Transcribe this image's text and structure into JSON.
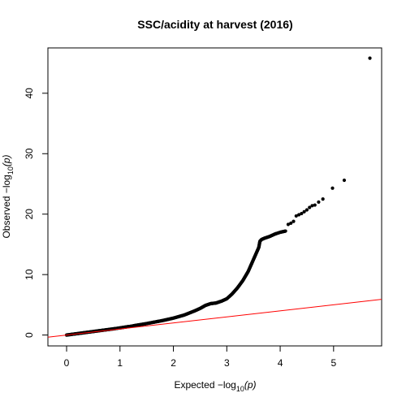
{
  "chart_data": {
    "type": "scatter",
    "title": "SSC/acidity at harvest (2016)",
    "xlabel": {
      "prefix": "Expected  −log",
      "sub": "10",
      "suffix": "(p)"
    },
    "ylabel": {
      "prefix": "Observed  −log",
      "sub": "10",
      "suffix": "(p)"
    },
    "xlim": [
      -0.35,
      5.9
    ],
    "ylim": [
      -1.8,
      47.5
    ],
    "x_ticks": [
      0,
      1,
      2,
      3,
      4,
      5
    ],
    "y_ticks": [
      0,
      10,
      20,
      30,
      40
    ],
    "grid": false,
    "legend": "none",
    "reference_line": {
      "description": "y = x",
      "color": "#ff0000",
      "x": [
        -0.35,
        5.9
      ],
      "y": [
        -0.35,
        5.9
      ]
    },
    "point_color": "#000000",
    "curve_points": {
      "x": [
        0,
        0.3,
        0.6,
        0.9,
        1.2,
        1.5,
        1.8,
        2.0,
        2.2,
        2.4,
        2.5,
        2.6,
        2.7,
        2.75,
        2.8,
        2.9,
        3.0,
        3.1,
        3.2,
        3.3,
        3.4,
        3.5,
        3.55,
        3.6,
        3.62,
        3.65,
        3.7,
        3.8,
        3.9,
        4.0,
        4.1
      ],
      "y": [
        0,
        0.35,
        0.7,
        1.05,
        1.45,
        1.9,
        2.4,
        2.8,
        3.3,
        4.0,
        4.4,
        4.9,
        5.2,
        5.25,
        5.3,
        5.6,
        6.0,
        6.8,
        7.8,
        9.0,
        10.5,
        12.5,
        13.5,
        14.5,
        15.5,
        15.8,
        16.0,
        16.3,
        16.7,
        17.0,
        17.2
      ]
    },
    "outlier_points": {
      "x": [
        4.15,
        4.2,
        4.25,
        4.3,
        4.35,
        4.4,
        4.45,
        4.5,
        4.55,
        4.6,
        4.65,
        4.72,
        4.8,
        4.98,
        5.2,
        5.68
      ],
      "y": [
        18.3,
        18.5,
        18.8,
        19.7,
        19.9,
        20.1,
        20.4,
        20.7,
        21.1,
        21.4,
        21.5,
        22.0,
        22.5,
        24.3,
        25.6,
        45.8
      ]
    }
  }
}
